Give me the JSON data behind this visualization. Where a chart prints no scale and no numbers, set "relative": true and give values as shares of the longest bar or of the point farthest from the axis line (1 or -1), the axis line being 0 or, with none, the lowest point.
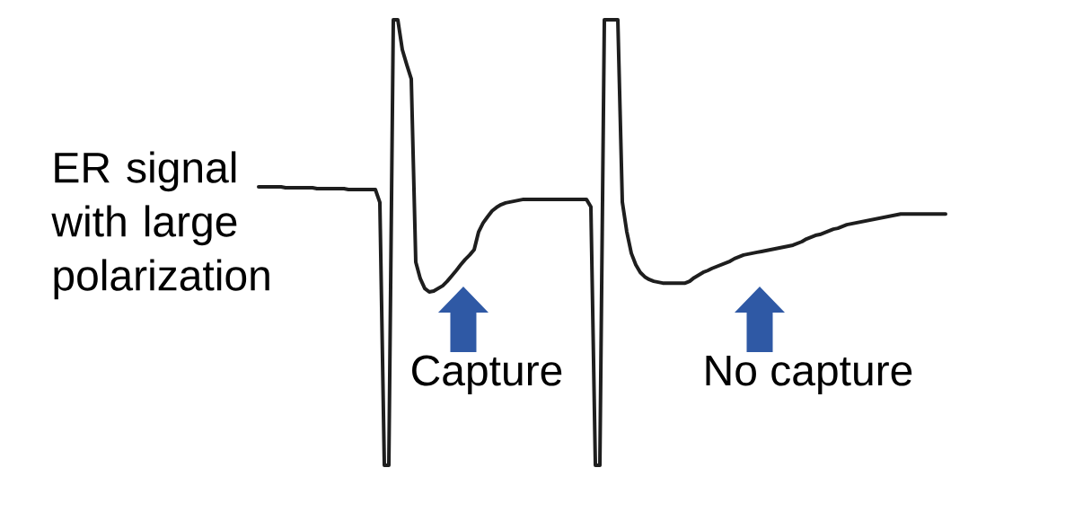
{
  "chart_data": {
    "type": "line",
    "relative": true,
    "categories": [
      null,
      null,
      null,
      null,
      null,
      null,
      null,
      null,
      null,
      null,
      null,
      null,
      null,
      null,
      null,
      null,
      null,
      null,
      null,
      null,
      null,
      null,
      null,
      null,
      null,
      null,
      null,
      null,
      null,
      null,
      null,
      null,
      null,
      null,
      null,
      null,
      null,
      null,
      null,
      null,
      null,
      null,
      null,
      null,
      null,
      null,
      null,
      null,
      null,
      null,
      null,
      null,
      null,
      null,
      null,
      null,
      null,
      null,
      null,
      null,
      null,
      null,
      null,
      null,
      null,
      null,
      null,
      null,
      null,
      null,
      null,
      null,
      null,
      null,
      null,
      null,
      null,
      null,
      null,
      null,
      null,
      null,
      null,
      null,
      null,
      null,
      null,
      null,
      null,
      null,
      null,
      null,
      null,
      null,
      null,
      null,
      null,
      null,
      null,
      null,
      null,
      null,
      null,
      null,
      null,
      null,
      null,
      null,
      null,
      null,
      null,
      null,
      null,
      null,
      null,
      null,
      null,
      null,
      null,
      null,
      null,
      null,
      null,
      null,
      null,
      null,
      null,
      null,
      null,
      null,
      null,
      null,
      null,
      null,
      null,
      null,
      null,
      null,
      null,
      null,
      null,
      null,
      null,
      null,
      null,
      null,
      null,
      null,
      null,
      null,
      null,
      null,
      null,
      null
    ],
    "series": [
      {
        "name": "ER signal with large polarization",
        "color": "#1e1e1e",
        "values": [
          0.625,
          0.625,
          0.625,
          0.625,
          0.625,
          0.625,
          0.623,
          0.623,
          0.623,
          0.623,
          0.623,
          0.623,
          0.623,
          0.621,
          0.621,
          0.621,
          0.621,
          0.621,
          0.621,
          0.621,
          0.619,
          0.619,
          0.619,
          0.619,
          0.619,
          0.619,
          0.619,
          0.59,
          0,
          0,
          1,
          1,
          0.933,
          0.899,
          0.867,
          0.456,
          0.419,
          0.397,
          0.389,
          0.391,
          0.397,
          0.403,
          0.413,
          0.425,
          0.437,
          0.45,
          0.462,
          0.472,
          0.484,
          0.524,
          0.544,
          0.558,
          0.571,
          0.579,
          0.585,
          0.589,
          0.591,
          0.593,
          0.595,
          0.597,
          0.597,
          0.597,
          0.597,
          0.597,
          0.597,
          0.597,
          0.597,
          0.597,
          0.597,
          0.597,
          0.597,
          0.597,
          0.597,
          0.597,
          0.58,
          0,
          0,
          1,
          1,
          1,
          1,
          0.591,
          0.524,
          0.476,
          0.45,
          0.433,
          0.423,
          0.417,
          0.413,
          0.411,
          0.409,
          0.409,
          0.409,
          0.409,
          0.409,
          0.409,
          0.413,
          0.421,
          0.427,
          0.433,
          0.437,
          0.442,
          0.446,
          0.45,
          0.454,
          0.458,
          0.464,
          0.468,
          0.472,
          0.474,
          0.476,
          0.478,
          0.48,
          0.482,
          0.484,
          0.486,
          0.488,
          0.49,
          0.492,
          0.494,
          0.498,
          0.502,
          0.508,
          0.512,
          0.516,
          0.518,
          0.522,
          0.526,
          0.53,
          0.532,
          0.536,
          0.54,
          0.542,
          0.544,
          0.546,
          0.548,
          0.55,
          0.552,
          0.554,
          0.556,
          0.558,
          0.56,
          0.562,
          0.564,
          0.564,
          0.564,
          0.564,
          0.564,
          0.564,
          0.564,
          0.564,
          0.564,
          0.564,
          0.564
        ]
      }
    ],
    "annotations": [
      "Capture",
      "No capture"
    ]
  }
}
